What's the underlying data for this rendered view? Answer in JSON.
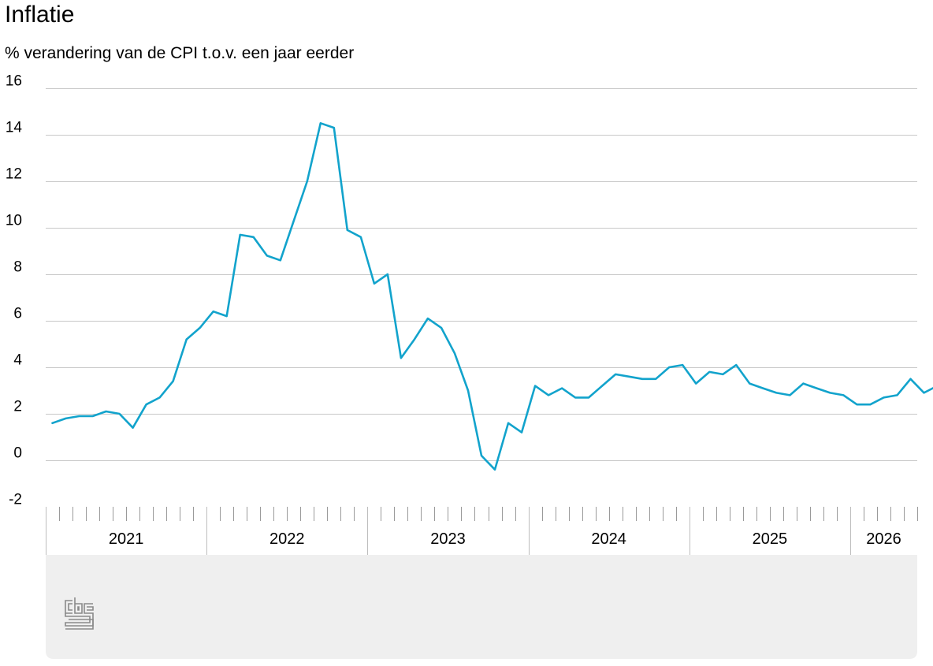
{
  "title": "Inflatie",
  "subtitle": "% verandering van de CPI t.o.v. een jaar eerder",
  "colors": {
    "line": "#12a3cc",
    "grid": "#c8c8c8",
    "panel": "#efefef",
    "logo": "#8a8a8a"
  },
  "logo_icon": "cbs-logo-icon",
  "chart_data": {
    "type": "line",
    "title": "Inflatie",
    "subtitle": "% verandering van de CPI t.o.v. een jaar eerder",
    "xlabel": "",
    "ylabel": "",
    "ylim": [
      -2,
      16
    ],
    "yticks": [
      "16",
      "14",
      "12",
      "10",
      "8",
      "6",
      "4",
      "2",
      "0",
      "-2"
    ],
    "xlim": [
      "2021-01",
      "2026-05"
    ],
    "year_labels": [
      "2021",
      "2022",
      "2023",
      "2024",
      "2025",
      "2026"
    ],
    "grid": true,
    "legend": "none",
    "series": [
      {
        "x": [
          "2021-01",
          "2021-02",
          "2021-03",
          "2021-04",
          "2021-05",
          "2021-06",
          "2021-07",
          "2021-08",
          "2021-09",
          "2021-10",
          "2021-11",
          "2021-12",
          "2022-01",
          "2022-02",
          "2022-03",
          "2022-04",
          "2022-05",
          "2022-06",
          "2022-07",
          "2022-08",
          "2022-09",
          "2022-10",
          "2022-11",
          "2022-12",
          "2023-01",
          "2023-02",
          "2023-03",
          "2023-04",
          "2023-05",
          "2023-06",
          "2023-07",
          "2023-08",
          "2023-09",
          "2023-10",
          "2023-11",
          "2023-12",
          "2024-01",
          "2024-02",
          "2024-03",
          "2024-04",
          "2024-05",
          "2024-06",
          "2024-07",
          "2024-08",
          "2024-09",
          "2024-10",
          "2024-11",
          "2024-12",
          "2025-01",
          "2025-02",
          "2025-03",
          "2025-04",
          "2025-05",
          "2025-06",
          "2025-07",
          "2025-08",
          "2025-09",
          "2025-10",
          "2025-11",
          "2025-12",
          "2026-01",
          "2026-02",
          "2026-03",
          "2026-04",
          "2026-05",
          "2026-06",
          "2026-07"
        ],
        "values": [
          1.6,
          1.8,
          1.9,
          1.9,
          2.1,
          2.0,
          1.4,
          2.4,
          2.7,
          3.4,
          5.2,
          5.7,
          6.4,
          6.2,
          9.7,
          9.6,
          8.8,
          8.6,
          10.3,
          12.0,
          14.5,
          14.3,
          9.9,
          9.6,
          7.6,
          8.0,
          4.4,
          5.2,
          6.1,
          5.7,
          4.6,
          3.0,
          0.2,
          -0.4,
          1.6,
          1.2,
          3.2,
          2.8,
          3.1,
          2.7,
          2.7,
          3.2,
          3.7,
          3.6,
          3.5,
          3.5,
          4.0,
          4.1,
          3.3,
          3.8,
          3.7,
          4.1,
          3.3,
          3.1,
          2.9,
          2.8,
          3.3,
          3.1,
          2.9,
          2.8,
          2.4,
          2.4,
          2.7,
          2.8,
          3.5,
          2.9,
          3.2
        ]
      }
    ]
  }
}
